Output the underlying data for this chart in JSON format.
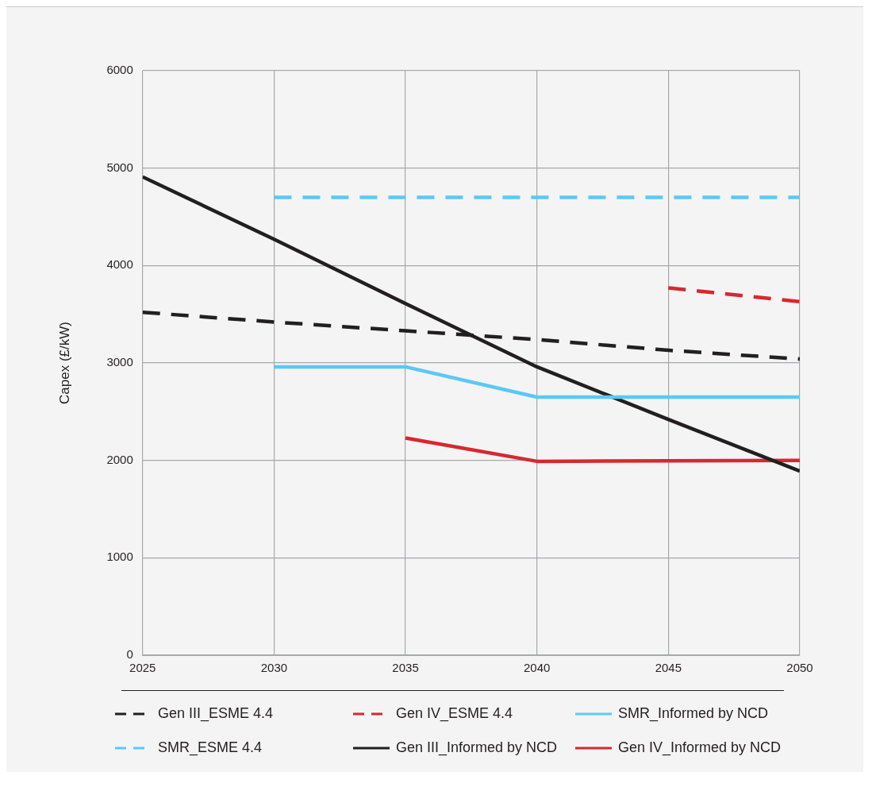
{
  "chart_data": {
    "type": "line",
    "ylabel": "Capex (£/kW)",
    "xlim": [
      2025,
      2050
    ],
    "xticks": [
      2025,
      2030,
      2035,
      2040,
      2045,
      2050
    ],
    "ylim": [
      0,
      6000
    ],
    "yticks": [
      0,
      1000,
      2000,
      3000,
      4000,
      5000,
      6000
    ],
    "grid": true,
    "legend": "bottom",
    "series": [
      {
        "name": "Gen III_ESME 4.4",
        "color": "#231f20",
        "line_style": "dashed",
        "x": [
          2025,
          2030,
          2035,
          2040,
          2045,
          2050
        ],
        "values": [
          3520,
          3420,
          3330,
          3240,
          3130,
          3040
        ]
      },
      {
        "name": "Gen IV_ESME 4.4",
        "color": "#d7282f",
        "line_style": "dashed",
        "x": [
          2045,
          2050
        ],
        "values": [
          3770,
          3630
        ]
      },
      {
        "name": "SMR_Informed by NCD",
        "color": "#5bc8f5",
        "line_style": "solid",
        "x": [
          2030,
          2035,
          2040,
          2050
        ],
        "values": [
          2960,
          2960,
          2650,
          2650
        ]
      },
      {
        "name": "SMR_ESME 4.4",
        "color": "#5bc8f5",
        "line_style": "dashed",
        "x": [
          2030,
          2050
        ],
        "values": [
          4700,
          4700
        ]
      },
      {
        "name": "Gen III_Informed by NCD",
        "color": "#231f20",
        "line_style": "solid",
        "x": [
          2025,
          2030,
          2035,
          2040,
          2045,
          2050
        ],
        "values": [
          4910,
          4270,
          3610,
          2960,
          2420,
          1890
        ]
      },
      {
        "name": "Gen IV_Informed by NCD",
        "color": "#d7282f",
        "line_style": "solid",
        "x": [
          2035,
          2040,
          2050
        ],
        "values": [
          2230,
          1990,
          2000
        ]
      }
    ]
  }
}
